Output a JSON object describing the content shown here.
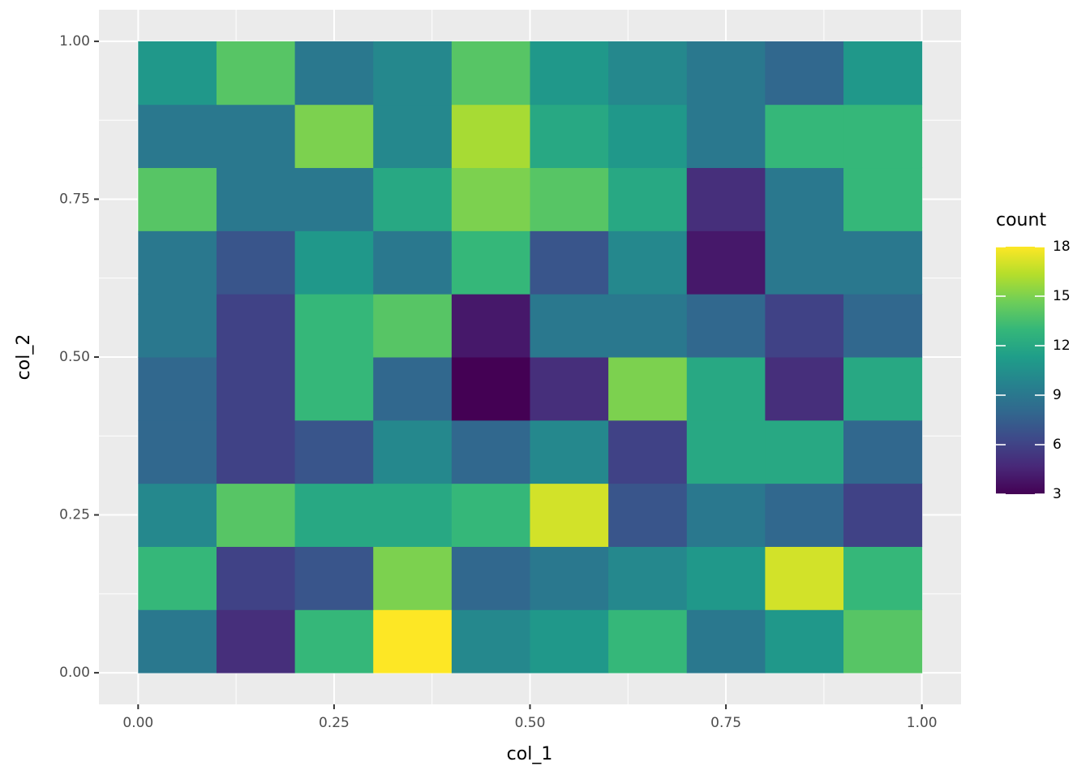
{
  "chart_data": {
    "type": "heatmap",
    "x_label": "col_1",
    "y_label": "col_2",
    "xbins": [
      0,
      0.1,
      0.2,
      0.3,
      0.4,
      0.5,
      0.6,
      0.7,
      0.8,
      0.9,
      1.0
    ],
    "ybins": [
      0,
      0.1,
      0.2,
      0.3,
      0.4,
      0.5,
      0.6,
      0.7,
      0.8,
      0.9,
      1.0
    ],
    "z": [
      [
        9,
        5,
        13,
        18,
        10,
        11,
        13,
        9,
        11,
        14
      ],
      [
        13,
        6,
        7,
        15,
        8,
        9,
        10,
        11,
        17,
        13
      ],
      [
        10,
        14,
        12,
        12,
        13,
        17,
        7,
        9,
        8,
        6
      ],
      [
        8,
        6,
        7,
        10,
        8,
        10,
        6,
        12,
        12,
        8
      ],
      [
        8,
        6,
        13,
        8,
        3,
        5,
        15,
        12,
        5,
        12
      ],
      [
        9,
        6,
        13,
        14,
        4,
        9,
        9,
        8,
        6,
        8
      ],
      [
        9,
        7,
        11,
        9,
        13,
        7,
        10,
        4,
        9,
        9
      ],
      [
        14,
        9,
        9,
        12,
        15,
        14,
        12,
        5,
        9,
        13
      ],
      [
        9,
        9,
        15,
        10,
        16,
        12,
        11,
        9,
        13,
        13
      ],
      [
        11,
        14,
        9,
        10,
        14,
        11,
        10,
        9,
        8,
        11
      ]
    ],
    "xlim": [
      -0.05,
      1.05
    ],
    "ylim": [
      -0.05,
      1.05
    ],
    "xticks": [
      {
        "value": 0,
        "label": "0.00"
      },
      {
        "value": 0.25,
        "label": "0.25"
      },
      {
        "value": 0.5,
        "label": "0.50"
      },
      {
        "value": 0.75,
        "label": "0.75"
      },
      {
        "value": 1,
        "label": "1.00"
      }
    ],
    "yticks": [
      {
        "value": 0,
        "label": "0.00"
      },
      {
        "value": 0.25,
        "label": "0.25"
      },
      {
        "value": 0.5,
        "label": "0.50"
      },
      {
        "value": 0.75,
        "label": "0.75"
      },
      {
        "value": 1,
        "label": "1.00"
      }
    ],
    "grid": true,
    "colorbar": {
      "title": "count",
      "lim": [
        3,
        18
      ],
      "ticks": [
        3,
        6,
        9,
        12,
        15,
        18
      ],
      "colors": [
        "#440154",
        "#482878",
        "#3e4989",
        "#31688e",
        "#26828e",
        "#1f9e89",
        "#35b779",
        "#6ece58",
        "#b5de2b",
        "#fde725"
      ]
    }
  }
}
